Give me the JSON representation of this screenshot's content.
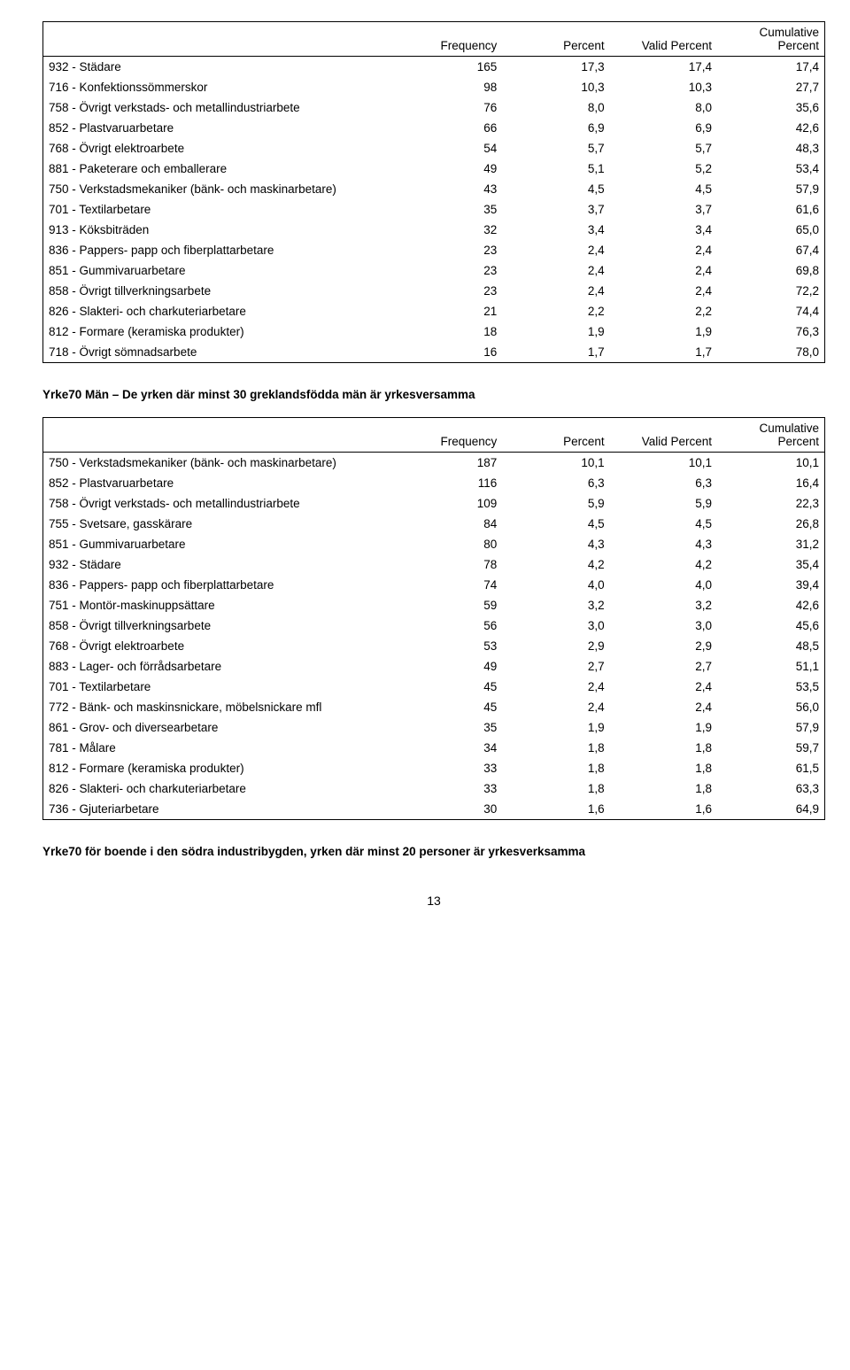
{
  "table1": {
    "headers": [
      "",
      "Frequency",
      "Percent",
      "Valid Percent",
      "Cumulative Percent"
    ],
    "rows": [
      [
        "932 - Städare",
        "165",
        "17,3",
        "17,4",
        "17,4"
      ],
      [
        "716 - Konfektionssömmerskor",
        "98",
        "10,3",
        "10,3",
        "27,7"
      ],
      [
        "758 - Övrigt verkstads- och metallindustriarbete",
        "76",
        "8,0",
        "8,0",
        "35,6"
      ],
      [
        "852 - Plastvaruarbetare",
        "66",
        "6,9",
        "6,9",
        "42,6"
      ],
      [
        "768 - Övrigt elektroarbete",
        "54",
        "5,7",
        "5,7",
        "48,3"
      ],
      [
        "881 - Paketerare och emballerare",
        "49",
        "5,1",
        "5,2",
        "53,4"
      ],
      [
        "750 - Verkstadsmekaniker (bänk- och maskinarbetare)",
        "43",
        "4,5",
        "4,5",
        "57,9"
      ],
      [
        "701 - Textilarbetare",
        "35",
        "3,7",
        "3,7",
        "61,6"
      ],
      [
        "913 - Köksbiträden",
        "32",
        "3,4",
        "3,4",
        "65,0"
      ],
      [
        "836 - Pappers- papp och fiberplattarbetare",
        "23",
        "2,4",
        "2,4",
        "67,4"
      ],
      [
        "851 - Gummivaruarbetare",
        "23",
        "2,4",
        "2,4",
        "69,8"
      ],
      [
        "858 - Övrigt tillverkningsarbete",
        "23",
        "2,4",
        "2,4",
        "72,2"
      ],
      [
        "826 - Slakteri- och charkuteriarbetare",
        "21",
        "2,2",
        "2,2",
        "74,4"
      ],
      [
        "812 - Formare (keramiska produkter)",
        "18",
        "1,9",
        "1,9",
        "76,3"
      ],
      [
        "718 - Övrigt sömnadsarbete",
        "16",
        "1,7",
        "1,7",
        "78,0"
      ]
    ]
  },
  "heading1": "Yrke70 Män – De yrken där minst 30 greklandsfödda män är yrkesversamma",
  "table2": {
    "headers": [
      "",
      "Frequency",
      "Percent",
      "Valid Percent",
      "Cumulative Percent"
    ],
    "rows": [
      [
        "750 - Verkstadsmekaniker (bänk- och maskinarbetare)",
        "187",
        "10,1",
        "10,1",
        "10,1"
      ],
      [
        "852 - Plastvaruarbetare",
        "116",
        "6,3",
        "6,3",
        "16,4"
      ],
      [
        "758 - Övrigt verkstads- och metallindustriarbete",
        "109",
        "5,9",
        "5,9",
        "22,3"
      ],
      [
        "755 - Svetsare, gasskärare",
        "84",
        "4,5",
        "4,5",
        "26,8"
      ],
      [
        "851 - Gummivaruarbetare",
        "80",
        "4,3",
        "4,3",
        "31,2"
      ],
      [
        "932 - Städare",
        "78",
        "4,2",
        "4,2",
        "35,4"
      ],
      [
        "836 - Pappers- papp och fiberplattarbetare",
        "74",
        "4,0",
        "4,0",
        "39,4"
      ],
      [
        "751 - Montör-maskinuppsättare",
        "59",
        "3,2",
        "3,2",
        "42,6"
      ],
      [
        "858 - Övrigt tillverkningsarbete",
        "56",
        "3,0",
        "3,0",
        "45,6"
      ],
      [
        "768 - Övrigt elektroarbete",
        "53",
        "2,9",
        "2,9",
        "48,5"
      ],
      [
        "883 - Lager- och förrådsarbetare",
        "49",
        "2,7",
        "2,7",
        "51,1"
      ],
      [
        "701 - Textilarbetare",
        "45",
        "2,4",
        "2,4",
        "53,5"
      ],
      [
        "772 - Bänk- och maskinsnickare, möbelsnickare mfl",
        "45",
        "2,4",
        "2,4",
        "56,0"
      ],
      [
        "861 - Grov- och diversearbetare",
        "35",
        "1,9",
        "1,9",
        "57,9"
      ],
      [
        "781 - Målare",
        "34",
        "1,8",
        "1,8",
        "59,7"
      ],
      [
        "812 - Formare (keramiska produkter)",
        "33",
        "1,8",
        "1,8",
        "61,5"
      ],
      [
        "826 - Slakteri- och charkuteriarbetare",
        "33",
        "1,8",
        "1,8",
        "63,3"
      ],
      [
        "736 - Gjuteriarbetare",
        "30",
        "1,6",
        "1,6",
        "64,9"
      ]
    ]
  },
  "heading2": "Yrke70 för boende i den södra industribygden, yrken där minst 20 personer är yrkesverksamma",
  "pageNumber": "13"
}
